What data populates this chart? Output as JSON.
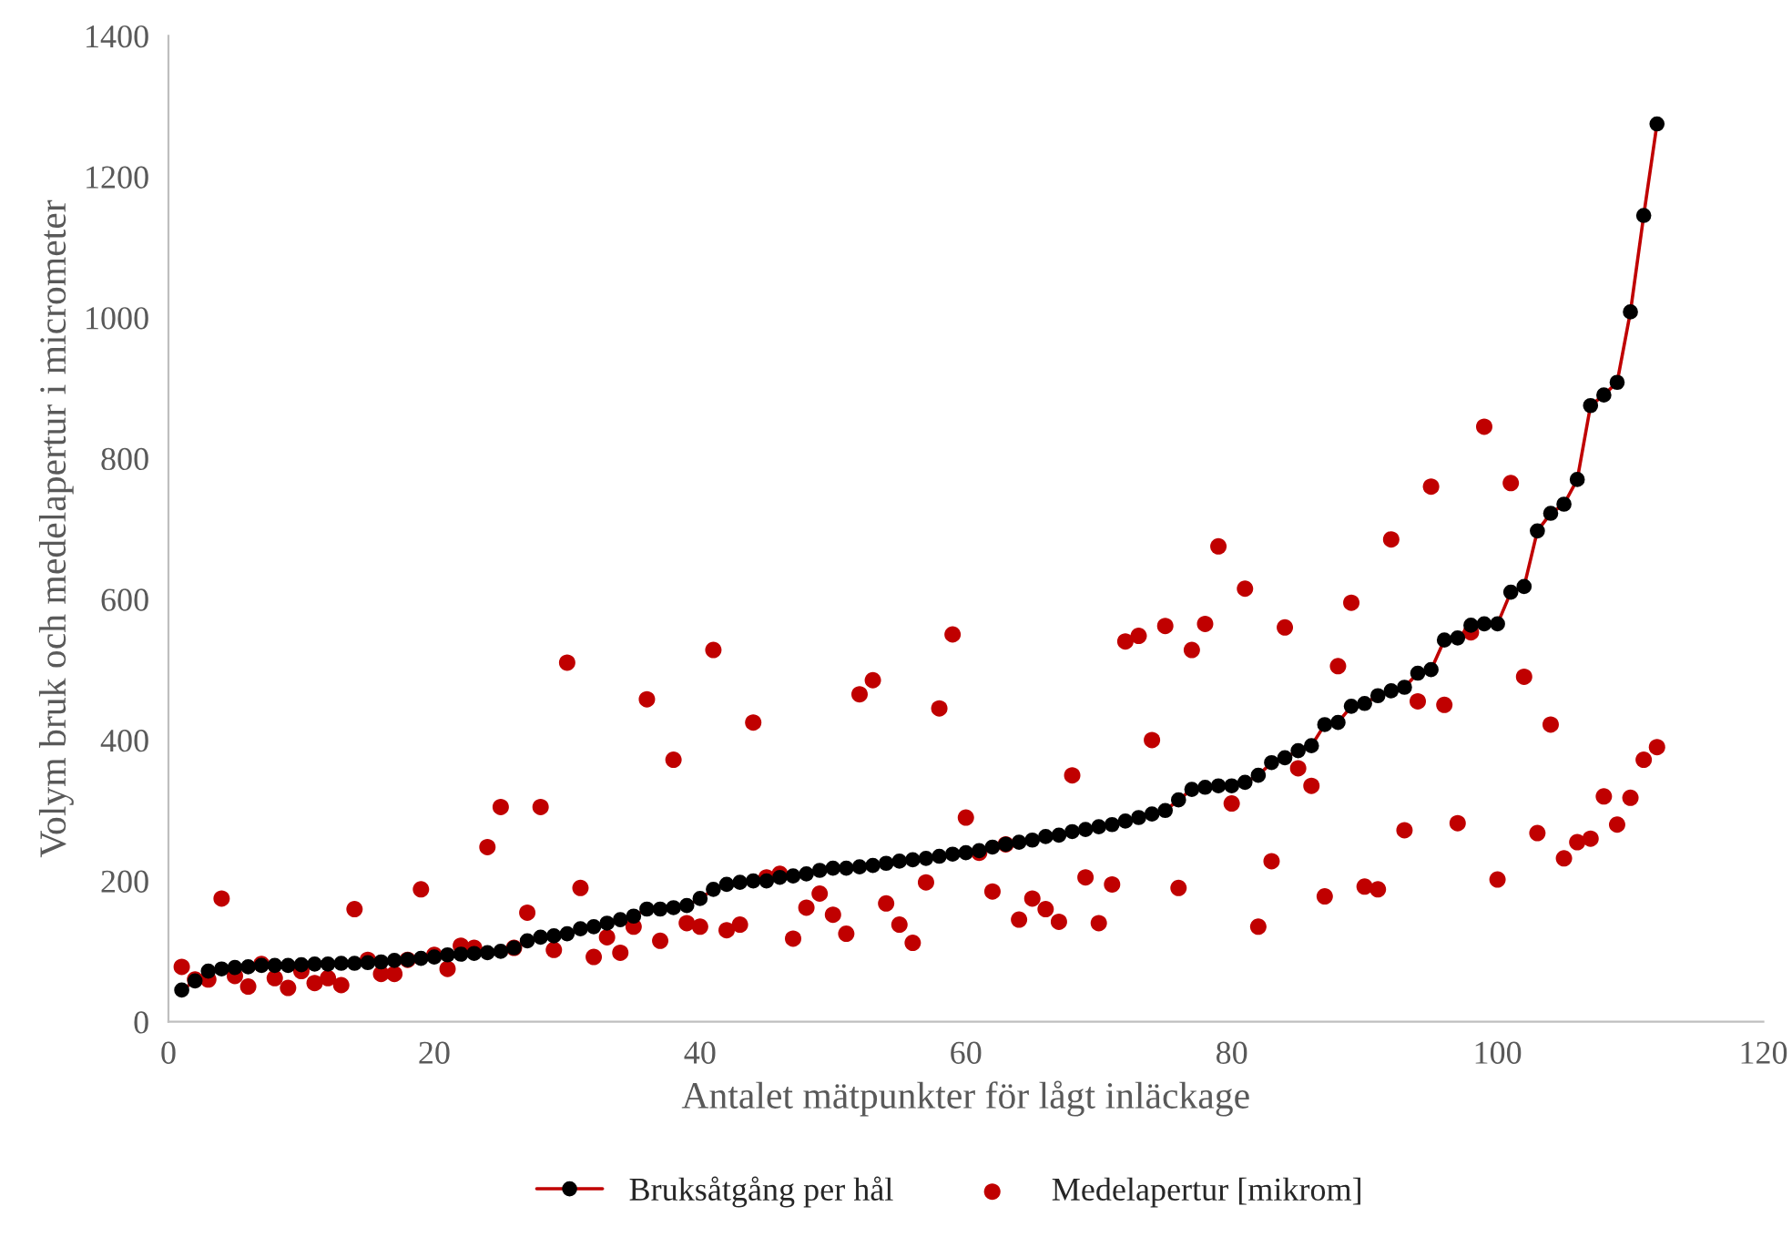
{
  "chart_data": {
    "type": "line",
    "xlabel": "Antalet mätpunkter för lågt inläckage",
    "ylabel": "Volym bruk och medelapertur i micrometer",
    "x": [
      1,
      2,
      3,
      4,
      5,
      6,
      7,
      8,
      9,
      10,
      11,
      12,
      13,
      14,
      15,
      16,
      17,
      18,
      19,
      20,
      21,
      22,
      23,
      24,
      25,
      26,
      27,
      28,
      29,
      30,
      31,
      32,
      33,
      34,
      35,
      36,
      37,
      38,
      39,
      40,
      41,
      42,
      43,
      44,
      45,
      46,
      47,
      48,
      49,
      50,
      51,
      52,
      53,
      54,
      55,
      56,
      57,
      58,
      59,
      60,
      61,
      62,
      63,
      64,
      65,
      66,
      67,
      68,
      69,
      70,
      71,
      72,
      73,
      74,
      75,
      76,
      77,
      78,
      79,
      80,
      81,
      82,
      83,
      84,
      85,
      86,
      87,
      88,
      89,
      90,
      91,
      92,
      93,
      94,
      95,
      96,
      97,
      98,
      99,
      100,
      101,
      102,
      103,
      104,
      105,
      106,
      107,
      108,
      109,
      110,
      111,
      112
    ],
    "series": [
      {
        "name": "Bruksåtgång per hål",
        "color": "#c00000",
        "marker": "circle",
        "values": [
          45,
          58,
          72,
          75,
          77,
          78,
          80,
          80,
          80,
          81,
          82,
          82,
          83,
          83,
          84,
          85,
          87,
          88,
          90,
          92,
          95,
          96,
          97,
          98,
          100,
          105,
          115,
          120,
          122,
          125,
          132,
          135,
          140,
          145,
          150,
          160,
          160,
          162,
          165,
          175,
          188,
          195,
          198,
          200,
          200,
          205,
          207,
          210,
          215,
          218,
          218,
          220,
          222,
          225,
          228,
          230,
          232,
          235,
          238,
          240,
          243,
          248,
          252,
          255,
          258,
          263,
          265,
          270,
          273,
          277,
          280,
          285,
          290,
          295,
          300,
          315,
          330,
          333,
          335,
          335,
          340,
          350,
          368,
          375,
          385,
          392,
          422,
          425,
          448,
          452,
          463,
          470,
          475,
          495,
          500,
          542,
          545,
          563,
          565,
          565,
          610,
          618,
          697,
          722,
          735,
          770,
          875,
          890,
          908,
          1008,
          1145,
          1275
        ]
      },
      {
        "name": "Medelapertur [mikrom]",
        "type": "scatter",
        "color": "#c00000",
        "marker": "circle",
        "values": [
          78,
          60,
          60,
          175,
          65,
          50,
          82,
          62,
          48,
          72,
          55,
          62,
          52,
          160,
          88,
          68,
          68,
          88,
          188,
          95,
          75,
          108,
          105,
          248,
          305,
          105,
          155,
          305,
          102,
          510,
          190,
          92,
          120,
          98,
          135,
          458,
          115,
          372,
          140,
          135,
          528,
          130,
          138,
          425,
          205,
          210,
          118,
          162,
          182,
          152,
          125,
          465,
          485,
          168,
          138,
          112,
          198,
          445,
          550,
          290,
          240,
          185,
          252,
          145,
          175,
          160,
          142,
          350,
          205,
          140,
          195,
          540,
          548,
          400,
          562,
          190,
          528,
          565,
          675,
          310,
          615,
          135,
          228,
          560,
          360,
          335,
          178,
          505,
          595,
          192,
          188,
          685,
          272,
          455,
          760,
          450,
          282,
          553,
          845,
          202,
          765,
          490,
          268,
          422,
          232,
          255,
          260,
          320,
          280,
          318,
          372,
          390
        ]
      }
    ],
    "xlim": [
      0,
      120
    ],
    "xticks": [
      0,
      20,
      40,
      60,
      80,
      100,
      120
    ],
    "ylim": [
      0,
      1400
    ],
    "yticks": [
      0,
      200,
      400,
      600,
      800,
      1000,
      1200,
      1400
    ],
    "grid": false,
    "legend": "bottom"
  }
}
